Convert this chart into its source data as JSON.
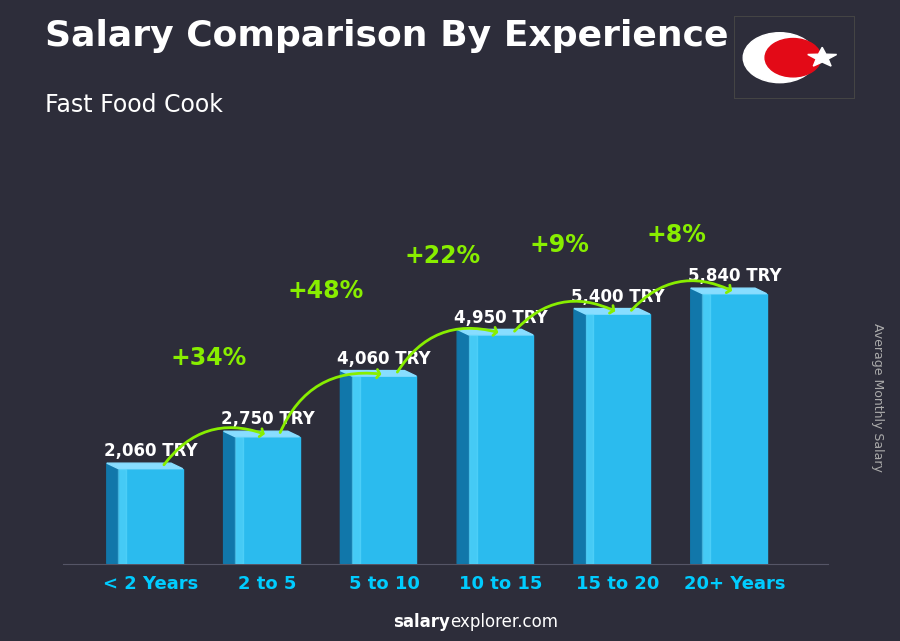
{
  "title": "Salary Comparison By Experience",
  "subtitle": "Fast Food Cook",
  "categories": [
    "< 2 Years",
    "2 to 5",
    "5 to 10",
    "10 to 15",
    "15 to 20",
    "20+ Years"
  ],
  "values": [
    2060,
    2750,
    4060,
    4950,
    5400,
    5840
  ],
  "labels": [
    "2,060 TRY",
    "2,750 TRY",
    "4,060 TRY",
    "4,950 TRY",
    "5,400 TRY",
    "5,840 TRY"
  ],
  "pct_labels": [
    "+34%",
    "+48%",
    "+22%",
    "+9%",
    "+8%"
  ],
  "bar_face_color": "#2BBBEE",
  "bar_left_color": "#1177AA",
  "bar_top_color": "#88DDFF",
  "bg_color": "#2d2d3a",
  "title_color": "#ffffff",
  "label_color": "#ffffff",
  "pct_color": "#88EE00",
  "cat_color": "#00CCFF",
  "watermark_bold": "salary",
  "watermark_normal": "explorer.com",
  "right_label": "Average Monthly Salary",
  "ylim_max": 7200,
  "title_fontsize": 26,
  "subtitle_fontsize": 17,
  "tick_fontsize": 13,
  "val_fontsize": 12,
  "pct_fontsize": 17,
  "flag_red": "#E30A17"
}
